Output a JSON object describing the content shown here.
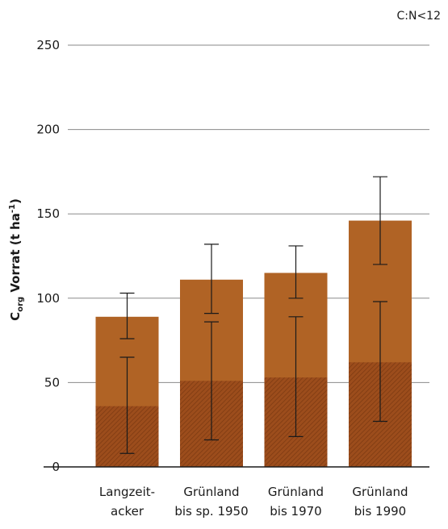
{
  "chart_data": {
    "type": "bar",
    "corner_label": "C:N<12",
    "ylabel_main": "C",
    "ylabel_sub": "org",
    "ylabel_rest": " Vorrat (t ha",
    "ylabel_sup": "-1",
    "ylabel_end": ")",
    "ylim": [
      0,
      250
    ],
    "yticks": [
      0,
      50,
      100,
      150,
      200,
      250
    ],
    "grid": true,
    "categories": [
      [
        "Langzeit-",
        "acker"
      ],
      [
        "Grünland",
        "bis sp. 1950"
      ],
      [
        "Grünland",
        "bis 1970"
      ],
      [
        "Grünland",
        "bis 1990"
      ]
    ],
    "series": [
      {
        "values": [
          89,
          111,
          115,
          146
        ],
        "error_low": [
          76,
          91,
          100,
          120
        ],
        "error_high": [
          103,
          132,
          131,
          172
        ],
        "color": "#b06325"
      },
      {
        "values": [
          36,
          51,
          53,
          62
        ],
        "error_low": [
          8,
          16,
          18,
          27
        ],
        "error_high": [
          65,
          86,
          89,
          98
        ],
        "color": "#9c4d1c",
        "pattern": "hatched"
      }
    ]
  }
}
